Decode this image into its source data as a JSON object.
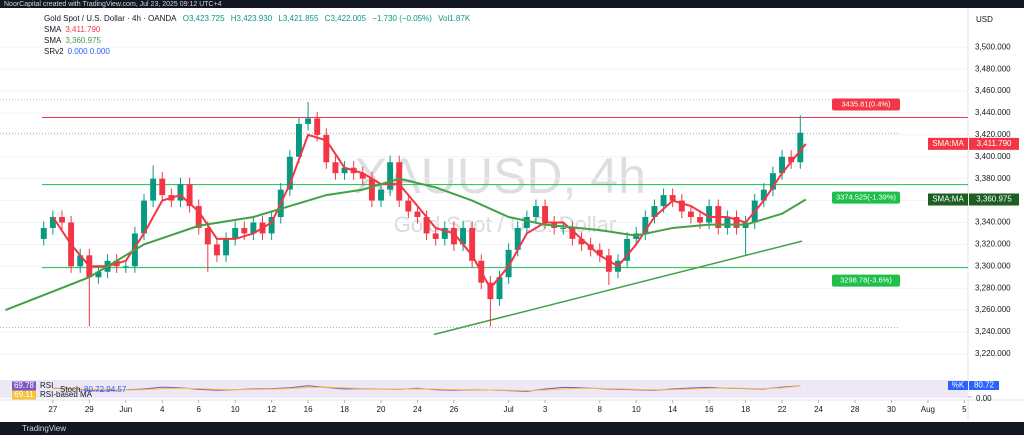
{
  "header": {
    "credit": "NoorCapital created with TradingView.com, Jul 23, 2025 09:12 UTC+4",
    "symbol": "Gold Spot / U.S. Dollar · 4h · OANDA",
    "ohlc": [
      "O3,423.725",
      "H3,423.930",
      "L3,421.855",
      "C3,422.005",
      "−1.730 (−0.05%)",
      "Vol1.87K"
    ],
    "indicator": "SRv2",
    "indicator_values": "0.000 0.000",
    "currency": "USD",
    "watermark": "XAUUSD, 4h",
    "watermark_sub": "Gold Spot / U.S. Dollar",
    "brand": "TradingView"
  },
  "chart_data": {
    "type": "candlestick",
    "x": [
      -0.5,
      0,
      0.5,
      1,
      1.5,
      2,
      2.5,
      3,
      3.5,
      4,
      4.5,
      5,
      5.5,
      6,
      6.5,
      7,
      7.5,
      8,
      8.5,
      9,
      9.5,
      10,
      10.5,
      11,
      11.5,
      12,
      12.5,
      13,
      13.5,
      14,
      14.5,
      15,
      15.5,
      16,
      16.5,
      17,
      17.5,
      18,
      18.5,
      19,
      19.5,
      20,
      20.5,
      21,
      21.5,
      22,
      22.5,
      23,
      23.5,
      24,
      24.5,
      25,
      25.5,
      26,
      26.5,
      27,
      27.5,
      28,
      28.5,
      29,
      29.5,
      30,
      30.5,
      31,
      31.5,
      32,
      32.5,
      33,
      33.5,
      34,
      34.5,
      35,
      35.5,
      36,
      36.5,
      37,
      37.5,
      38,
      38.5,
      39,
      39.5,
      40,
      40.5,
      41
    ],
    "open": [
      3325,
      3335,
      3345,
      3340,
      3300,
      3310,
      3290,
      3295,
      3305,
      3300,
      3300,
      3330,
      3360,
      3380,
      3365,
      3360,
      3375,
      3355,
      3335,
      3320,
      3310,
      3325,
      3335,
      3330,
      3340,
      3330,
      3345,
      3370,
      3400,
      3430,
      3435,
      3420,
      3395,
      3385,
      3390,
      3385,
      3380,
      3360,
      3370,
      3395,
      3360,
      3350,
      3345,
      3330,
      3325,
      3335,
      3320,
      3335,
      3305,
      3285,
      3270,
      3290,
      3315,
      3335,
      3345,
      3355,
      3340,
      3335,
      3335,
      3325,
      3320,
      3315,
      3310,
      3295,
      3305,
      3325,
      3330,
      3345,
      3355,
      3365,
      3360,
      3350,
      3345,
      3340,
      3355,
      3335,
      3345,
      3335,
      3340,
      3360,
      3370,
      3385,
      3400,
      3395
    ],
    "high": [
      3341,
      3351,
      3351,
      3346,
      3316,
      3316,
      3301,
      3311,
      3311,
      3306,
      3336,
      3366,
      3392,
      3386,
      3371,
      3381,
      3381,
      3361,
      3341,
      3326,
      3331,
      3341,
      3341,
      3346,
      3346,
      3351,
      3376,
      3406,
      3436,
      3450,
      3441,
      3426,
      3401,
      3396,
      3396,
      3391,
      3386,
      3376,
      3401,
      3401,
      3366,
      3356,
      3351,
      3336,
      3341,
      3341,
      3341,
      3341,
      3311,
      3291,
      3296,
      3321,
      3341,
      3351,
      3361,
      3361,
      3346,
      3341,
      3341,
      3331,
      3326,
      3321,
      3316,
      3311,
      3331,
      3336,
      3351,
      3361,
      3371,
      3371,
      3366,
      3356,
      3351,
      3361,
      3361,
      3351,
      3351,
      3346,
      3366,
      3376,
      3391,
      3406,
      3406,
      3438
    ],
    "low": [
      3319,
      3329,
      3334,
      3294,
      3294,
      3245,
      3284,
      3289,
      3294,
      3294,
      3294,
      3324,
      3354,
      3359,
      3354,
      3354,
      3349,
      3329,
      3295,
      3304,
      3304,
      3319,
      3324,
      3324,
      3324,
      3324,
      3339,
      3364,
      3394,
      3424,
      3414,
      3389,
      3379,
      3379,
      3379,
      3374,
      3354,
      3354,
      3364,
      3354,
      3344,
      3339,
      3324,
      3319,
      3319,
      3314,
      3314,
      3299,
      3279,
      3245,
      3264,
      3284,
      3309,
      3329,
      3339,
      3334,
      3329,
      3329,
      3319,
      3314,
      3309,
      3304,
      3283,
      3289,
      3299,
      3319,
      3324,
      3339,
      3349,
      3354,
      3344,
      3339,
      3334,
      3334,
      3329,
      3329,
      3329,
      3310,
      3334,
      3354,
      3364,
      3379,
      3389,
      3389
    ],
    "close": [
      3335,
      3345,
      3340,
      3300,
      3310,
      3290,
      3295,
      3305,
      3300,
      3300,
      3330,
      3360,
      3380,
      3365,
      3360,
      3375,
      3355,
      3335,
      3320,
      3310,
      3325,
      3335,
      3330,
      3340,
      3330,
      3345,
      3370,
      3400,
      3430,
      3435,
      3420,
      3395,
      3385,
      3390,
      3385,
      3380,
      3360,
      3370,
      3395,
      3360,
      3350,
      3345,
      3330,
      3325,
      3335,
      3320,
      3335,
      3305,
      3285,
      3270,
      3290,
      3315,
      3335,
      3345,
      3355,
      3340,
      3335,
      3335,
      3325,
      3320,
      3315,
      3310,
      3295,
      3305,
      3325,
      3330,
      3345,
      3355,
      3365,
      3360,
      3350,
      3345,
      3340,
      3355,
      3335,
      3345,
      3335,
      3340,
      3360,
      3370,
      3385,
      3400,
      3395,
      3422
    ],
    "up_color": "#089981",
    "down_color": "#f23645",
    "series": [
      {
        "name": "SMA",
        "tag": "SMA:MA",
        "color": "#f23645",
        "value_label": "3,411.790",
        "x": [
          0,
          1,
          2,
          3,
          4,
          5,
          6,
          7,
          8,
          9,
          10,
          11,
          12,
          13,
          14,
          15,
          16,
          17,
          18,
          19,
          20,
          21,
          22,
          23,
          24,
          25,
          26,
          27,
          28,
          29,
          30,
          31,
          32,
          33,
          34,
          35,
          36,
          37,
          38,
          39,
          40,
          41.3
        ],
        "values": [
          3345,
          3320,
          3300,
          3300,
          3305,
          3330,
          3360,
          3365,
          3350,
          3325,
          3325,
          3330,
          3340,
          3375,
          3420,
          3415,
          3390,
          3385,
          3375,
          3375,
          3355,
          3335,
          3330,
          3310,
          3280,
          3300,
          3330,
          3340,
          3340,
          3325,
          3310,
          3300,
          3320,
          3345,
          3360,
          3355,
          3345,
          3345,
          3340,
          3360,
          3385,
          3411.79
        ]
      },
      {
        "name": "SMA",
        "tag": "SMA:MA",
        "color": "#43a047",
        "tag_color": "#1b5e20",
        "value_label": "3,360.975",
        "x": [
          -2.6,
          2,
          5,
          8,
          11,
          13,
          15,
          17,
          19,
          21,
          23,
          25,
          27,
          30,
          32,
          34,
          36,
          38,
          40,
          41.3
        ],
        "values": [
          3260,
          3290,
          3320,
          3337,
          3345,
          3355,
          3365,
          3370,
          3380,
          3372,
          3360,
          3345,
          3338,
          3333,
          3328,
          3335,
          3338,
          3338,
          3348,
          3360.975
        ]
      }
    ],
    "trendline": {
      "x": [
        20.9,
        41.1
      ],
      "values": [
        3237.7,
        3323
      ],
      "color": "#43a047"
    },
    "levels": [
      {
        "value": 3435.81,
        "label": "3435.81(0.4%)",
        "color": "#f23645"
      },
      {
        "value": 3374.525,
        "label": "3374.525(-1.39%)",
        "color": "#1fbf4a"
      },
      {
        "value": 3298.78,
        "label": "3298.78(-3.6%)",
        "color": "#1fbf4a"
      }
    ],
    "guides": [
      3452,
      3421.5,
      3244
    ],
    "xlim": [
      -2.9,
      50.2
    ],
    "ylim": [
      3198,
      3534
    ],
    "yticks": [
      {
        "value": 3500,
        "label": "3,500.000"
      },
      {
        "value": 3480,
        "label": "3,480.000"
      },
      {
        "value": 3460,
        "label": "3,460.000"
      },
      {
        "value": 3440,
        "label": "3,440.000"
      },
      {
        "value": 3420,
        "label": "3,420.000"
      },
      {
        "value": 3400,
        "label": "3,400.000"
      },
      {
        "value": 3380,
        "label": "3,380.000"
      },
      {
        "value": 3360,
        "label": "3,360.000"
      },
      {
        "value": 3340,
        "label": "3,340.000"
      },
      {
        "value": 3320,
        "label": "3,320.000"
      },
      {
        "value": 3300,
        "label": "3,300.000"
      },
      {
        "value": 3280,
        "label": "3,280.000"
      },
      {
        "value": 3260,
        "label": "3,260.000"
      },
      {
        "value": 3240,
        "label": "3,240.000"
      },
      {
        "value": 3220,
        "label": "3,220.000"
      }
    ],
    "xticks": [
      {
        "value": 0,
        "label": "27"
      },
      {
        "value": 2,
        "label": "29"
      },
      {
        "value": 4,
        "label": "Jun"
      },
      {
        "value": 6,
        "label": "4"
      },
      {
        "value": 8,
        "label": "6"
      },
      {
        "value": 10,
        "label": "10"
      },
      {
        "value": 12,
        "label": "12"
      },
      {
        "value": 14,
        "label": "16"
      },
      {
        "value": 16,
        "label": "18"
      },
      {
        "value": 18,
        "label": "20"
      },
      {
        "value": 20,
        "label": "24"
      },
      {
        "value": 22,
        "label": "26"
      },
      {
        "value": 25,
        "label": "Jul"
      },
      {
        "value": 27,
        "label": "3"
      },
      {
        "value": 30,
        "label": "8"
      },
      {
        "value": 32,
        "label": "10"
      },
      {
        "value": 34,
        "label": "14"
      },
      {
        "value": 36,
        "label": "16"
      },
      {
        "value": 38,
        "label": "18"
      },
      {
        "value": 40,
        "label": "22"
      },
      {
        "value": 42,
        "label": "24"
      },
      {
        "value": 44,
        "label": "28"
      },
      {
        "value": 46,
        "label": "30"
      },
      {
        "value": 48,
        "label": "Aug"
      },
      {
        "value": 50,
        "label": "5"
      }
    ],
    "oscillator": {
      "ylim": [
        0,
        100
      ],
      "ytick": {
        "value": 0,
        "label": "0.00"
      },
      "x": [
        0,
        1,
        2,
        3,
        4,
        5,
        6,
        7,
        8,
        9,
        10,
        11,
        12,
        13,
        14,
        15,
        16,
        17,
        18,
        19,
        20,
        21,
        22,
        23,
        24,
        25,
        26,
        27,
        28,
        29,
        30,
        31,
        32,
        33,
        34,
        35,
        36,
        37,
        38,
        39,
        40,
        41
      ],
      "series": [
        {
          "name": "RSI",
          "color": "#7e57c2",
          "value_label": "69.78",
          "values": [
            55,
            52,
            40,
            38,
            45,
            50,
            62,
            58,
            48,
            42,
            46,
            50,
            52,
            58,
            70,
            60,
            50,
            52,
            50,
            48,
            55,
            45,
            42,
            45,
            44,
            40,
            35,
            50,
            60,
            58,
            52,
            48,
            45,
            42,
            50,
            56,
            60,
            55,
            52,
            50,
            62,
            69.78
          ]
        },
        {
          "name": "RSI-based MA",
          "color": "#f7c23c",
          "value_label": "69.11",
          "values": [
            52,
            51,
            48,
            45,
            44,
            46,
            52,
            55,
            52,
            48,
            46,
            47,
            49,
            53,
            60,
            62,
            57,
            53,
            51,
            49,
            51,
            49,
            46,
            45,
            44,
            42,
            40,
            44,
            50,
            55,
            54,
            51,
            48,
            45,
            46,
            50,
            55,
            56,
            54,
            52,
            57,
            69.11
          ]
        }
      ],
      "stoch": "Stoch",
      "stoch_values": "80.72  94.57",
      "k_tag": "%K",
      "k_value": "80.72"
    }
  }
}
